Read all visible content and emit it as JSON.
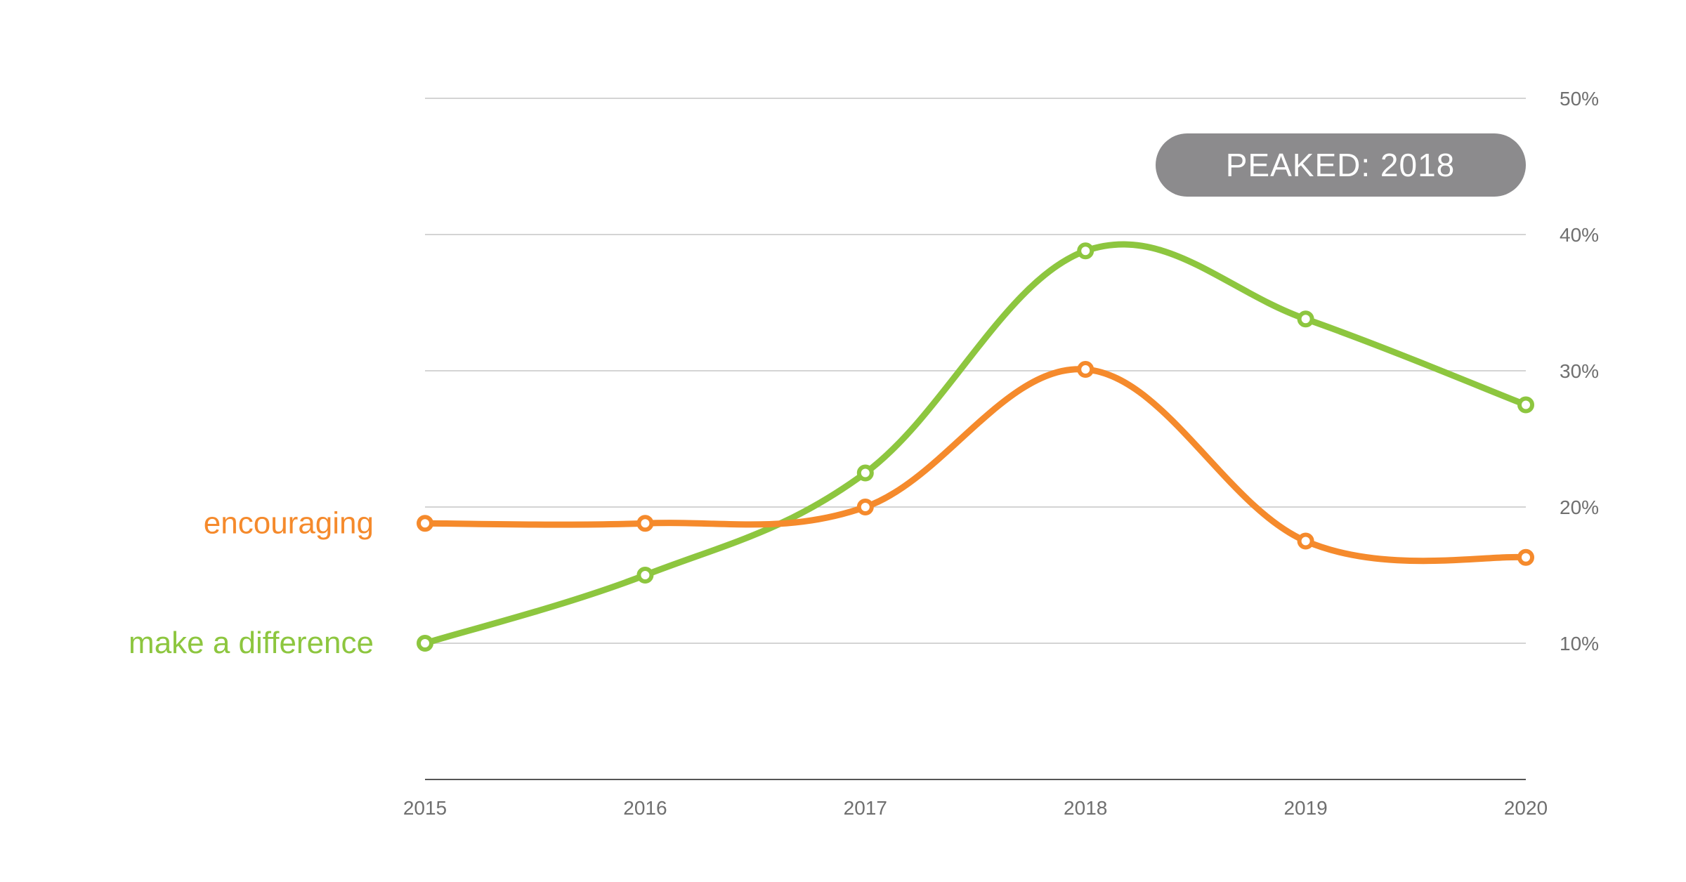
{
  "chart_data": {
    "type": "line",
    "x": [
      "2015",
      "2016",
      "2017",
      "2018",
      "2019",
      "2020"
    ],
    "ylim": [
      0,
      50
    ],
    "yticks": [
      10,
      20,
      30,
      40,
      50
    ],
    "ytick_labels": [
      "10%",
      "20%",
      "30%",
      "40%",
      "50%"
    ],
    "grid": true,
    "series": [
      {
        "name": "make a difference",
        "color": "#8dc63f",
        "values": [
          10.0,
          15.0,
          22.5,
          38.8,
          33.8,
          27.5
        ]
      },
      {
        "name": "encouraging",
        "color": "#f58a2c",
        "values": [
          18.8,
          18.8,
          20.0,
          30.1,
          17.5,
          16.3
        ]
      }
    ],
    "annotation": {
      "text": "PEAKED: 2018",
      "color": "#8c8b8d"
    }
  }
}
